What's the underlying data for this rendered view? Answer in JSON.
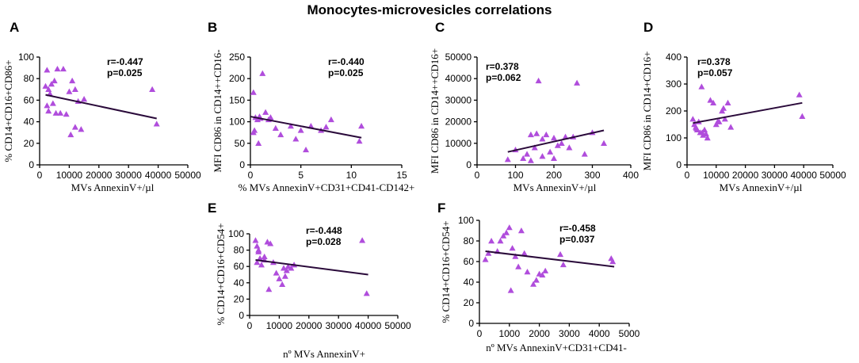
{
  "title": "Monocytes-microvesicles  correlations",
  "point_color": "#b04ddc",
  "line_color": "#2a0a3a",
  "chart_data": [
    {
      "label": "A",
      "type": "scatter",
      "xlabel": "MVs AnnexinV+/µl",
      "ylabel": "% CD14+CD16+CD86+",
      "xlim": [
        0,
        50000
      ],
      "xticks": [
        0,
        10000,
        20000,
        30000,
        40000,
        50000
      ],
      "ylim": [
        0,
        100
      ],
      "yticks": [
        0,
        20,
        40,
        60,
        80,
        100
      ],
      "stat_r": "r=-0.447",
      "stat_p": "p=0.025",
      "line": [
        [
          2000,
          65
        ],
        [
          39500,
          43
        ]
      ],
      "x": [
        2000,
        3000,
        2500,
        4000,
        5000,
        6000,
        8000,
        10000,
        11000,
        12000,
        3500,
        3000,
        7000,
        9000,
        13000,
        12000,
        14000,
        15000,
        10500,
        38000,
        39500,
        2500,
        4500,
        5500
      ],
      "y": [
        73,
        70,
        88,
        75,
        78,
        89,
        89,
        68,
        78,
        70,
        66,
        50,
        48,
        47,
        59,
        35,
        33,
        61,
        28,
        70,
        38,
        55,
        57,
        48
      ]
    },
    {
      "label": "B",
      "type": "scatter",
      "xlabel": "% MVs AnnexinV+CD31+CD41-CD142+",
      "ylabel": "MFI CD86 in CD14++CD16-",
      "xlim": [
        0,
        15
      ],
      "xticks": [
        0,
        5,
        10,
        15
      ],
      "ylim": [
        0,
        250
      ],
      "yticks": [
        0,
        50,
        100,
        150,
        200,
        250
      ],
      "stat_r": "r=-0.440",
      "stat_p": "p=0.025",
      "line": [
        [
          0,
          112
        ],
        [
          11,
          63
        ]
      ],
      "x": [
        0.3,
        0.5,
        0.9,
        1.2,
        1.5,
        1.0,
        0.7,
        0.4,
        0.8,
        2.0,
        2.5,
        3.0,
        4.0,
        4.5,
        5.0,
        5.5,
        6.0,
        7.0,
        7.5,
        8.0,
        11.0,
        10.8,
        0.3,
        1.8
      ],
      "y": [
        168,
        110,
        112,
        212,
        122,
        108,
        105,
        80,
        50,
        110,
        85,
        70,
        90,
        60,
        80,
        35,
        90,
        80,
        88,
        105,
        90,
        55,
        75,
        105
      ]
    },
    {
      "label": "C",
      "type": "scatter",
      "xlabel": "MVs AnnexinV+/µl",
      "ylabel": "MFI CD86 in CD14++CD16+",
      "xlim": [
        0,
        400
      ],
      "xticks": [
        0,
        100,
        200,
        300,
        400
      ],
      "ylim": [
        0,
        50000
      ],
      "yticks": [
        0,
        10000,
        20000,
        30000,
        40000,
        50000
      ],
      "stat_r": "r=0.378",
      "stat_p": "p=0.062",
      "line": [
        [
          80,
          6000
        ],
        [
          330,
          16000
        ]
      ],
      "x": [
        80,
        100,
        120,
        130,
        140,
        150,
        160,
        170,
        180,
        190,
        200,
        210,
        220,
        230,
        250,
        260,
        280,
        300,
        330,
        170,
        140,
        200,
        240,
        155
      ],
      "y": [
        2500,
        7000,
        3000,
        5000,
        14000,
        8000,
        39000,
        12000,
        14000,
        6000,
        3000,
        9000,
        10000,
        13000,
        13000,
        38000,
        5000,
        15000,
        10000,
        4000,
        2000,
        12500,
        8000,
        14500
      ]
    },
    {
      "label": "D",
      "type": "scatter",
      "xlabel": "MVs AnnexinV+/µl",
      "ylabel": "MFI CD86 in CD14+CD16+",
      "xlim": [
        0,
        50000
      ],
      "xticks": [
        0,
        10000,
        20000,
        30000,
        40000,
        50000
      ],
      "ylim": [
        0,
        400
      ],
      "yticks": [
        0,
        100,
        200,
        300,
        400
      ],
      "stat_r": "r=0.378",
      "stat_p": "p=0.057",
      "line": [
        [
          2000,
          155
        ],
        [
          39500,
          230
        ]
      ],
      "x": [
        2000,
        2500,
        3000,
        3500,
        4000,
        4500,
        5000,
        5500,
        6000,
        7000,
        8000,
        9000,
        10000,
        11000,
        12000,
        13000,
        14000,
        15000,
        38500,
        39500,
        3200,
        6500,
        12500,
        10500,
        5200
      ],
      "y": [
        170,
        150,
        140,
        130,
        160,
        120,
        290,
        110,
        130,
        100,
        240,
        230,
        150,
        160,
        200,
        170,
        230,
        140,
        260,
        180,
        135,
        115,
        210,
        160,
        120
      ]
    },
    {
      "label": "E",
      "type": "scatter",
      "xlabel": "nº MVs AnnexinV+",
      "ylabel": "% CD14+CD16+CD54+",
      "xlim": [
        0,
        50000
      ],
      "xticks": [
        0,
        10000,
        20000,
        30000,
        40000,
        50000
      ],
      "ylim": [
        0,
        100
      ],
      "yticks": [
        0,
        20,
        40,
        60,
        80,
        100
      ],
      "stat_r": "r=-0.448",
      "stat_p": "p=0.028",
      "line": [
        [
          2000,
          68
        ],
        [
          40000,
          50
        ]
      ],
      "x": [
        2000,
        2500,
        3000,
        3500,
        4000,
        5000,
        6000,
        7000,
        8000,
        9000,
        10000,
        11000,
        12000,
        13000,
        14000,
        15000,
        38000,
        39500,
        3000,
        5000,
        6500,
        2500,
        11500,
        12500
      ],
      "y": [
        92,
        85,
        78,
        70,
        62,
        72,
        90,
        88,
        65,
        52,
        45,
        38,
        48,
        60,
        58,
        62,
        92,
        27,
        80,
        68,
        32,
        65,
        58,
        55
      ]
    },
    {
      "label": "F",
      "type": "scatter",
      "xlabel": "nº MVs AnnexinV+CD31+CD41-",
      "ylabel": "% CD14+CD16+CD54+",
      "xlim": [
        0,
        5000
      ],
      "xticks": [
        0,
        1000,
        2000,
        3000,
        4000,
        5000
      ],
      "ylim": [
        0,
        100
      ],
      "yticks": [
        0,
        20,
        40,
        60,
        80,
        100
      ],
      "stat_r": "r=-0.458",
      "stat_p": "p=0.037",
      "line": [
        [
          200,
          70
        ],
        [
          4500,
          55
        ]
      ],
      "x": [
        200,
        300,
        400,
        600,
        800,
        900,
        1000,
        1100,
        1200,
        1300,
        1500,
        1600,
        1800,
        1900,
        2000,
        2200,
        2700,
        2800,
        4400,
        4450,
        1050,
        700,
        1400,
        2100
      ],
      "y": [
        62,
        68,
        80,
        70,
        85,
        88,
        93,
        73,
        65,
        55,
        68,
        50,
        38,
        42,
        48,
        51,
        67,
        57,
        63,
        60,
        32,
        80,
        90,
        47
      ]
    }
  ]
}
